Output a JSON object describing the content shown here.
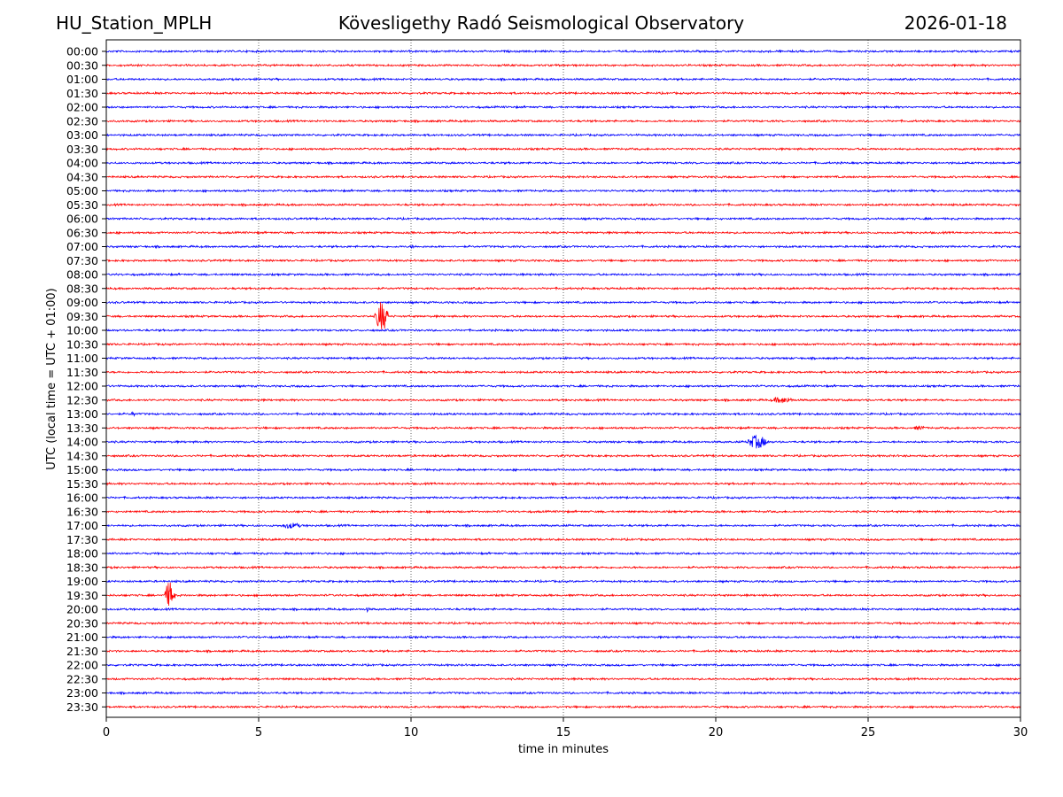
{
  "header": {
    "station": "HU_Station_MPLH",
    "observatory": "Kövesligethy Radó Seismological Observatory",
    "date": "2026-01-18"
  },
  "chart_data": {
    "type": "line",
    "title": "Kövesligethy Radó Seismological Observatory",
    "xlabel": "time in minutes",
    "ylabel": "UTC (local time = UTC + 01:00)",
    "xlim": [
      0,
      30
    ],
    "xticks": [
      0,
      5,
      10,
      15,
      20,
      25,
      30
    ],
    "grid": "vertical dotted at x ticks",
    "row_labels": [
      "00:00",
      "00:30",
      "01:00",
      "01:30",
      "02:00",
      "02:30",
      "03:00",
      "03:30",
      "04:00",
      "04:30",
      "05:00",
      "05:30",
      "06:00",
      "06:30",
      "07:00",
      "07:30",
      "08:00",
      "08:30",
      "09:00",
      "09:30",
      "10:00",
      "10:30",
      "11:00",
      "11:30",
      "12:00",
      "12:30",
      "13:00",
      "13:30",
      "14:00",
      "14:30",
      "15:00",
      "15:30",
      "16:00",
      "16:30",
      "17:00",
      "17:30",
      "18:00",
      "18:30",
      "19:00",
      "19:30",
      "20:00",
      "20:30",
      "21:00",
      "21:30",
      "22:00",
      "22:30",
      "23:00",
      "23:30"
    ],
    "trace_colors": [
      "#0000ff",
      "#ff0000"
    ],
    "noise_amplitude": 0.12,
    "events": [
      {
        "row": "09:30",
        "start_min": 8.8,
        "duration_min": 0.8,
        "amplitude": 2.4
      },
      {
        "row": "12:30",
        "start_min": 21.8,
        "duration_min": 1.3,
        "amplitude": 0.4
      },
      {
        "row": "13:30",
        "start_min": 26.5,
        "duration_min": 0.6,
        "amplitude": 0.25
      },
      {
        "row": "14:00",
        "start_min": 21.0,
        "duration_min": 1.2,
        "amplitude": 1.0
      },
      {
        "row": "17:00",
        "start_min": 5.7,
        "duration_min": 1.2,
        "amplitude": 0.35
      },
      {
        "row": "19:30",
        "start_min": 1.9,
        "duration_min": 0.6,
        "amplitude": 2.1
      },
      {
        "row": "20:00",
        "start_min": 8.5,
        "duration_min": 0.2,
        "amplitude": 0.3
      },
      {
        "row": "07:00",
        "start_min": 10.0,
        "duration_min": 0.2,
        "amplitude": 0.3
      },
      {
        "row": "13:00",
        "start_min": 0.8,
        "duration_min": 0.3,
        "amplitude": 0.3
      }
    ]
  }
}
